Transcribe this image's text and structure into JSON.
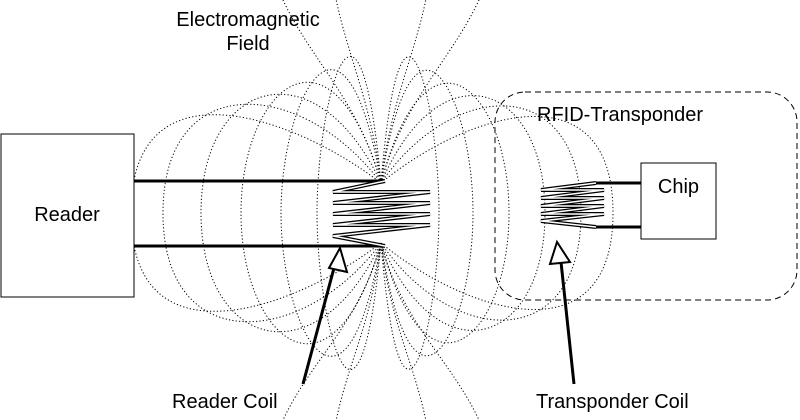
{
  "labels": {
    "reader": "Reader",
    "chip": "Chip",
    "field_line1": "Electromagnetic",
    "field_line2": "Field",
    "transponder": "RFID-Transponder",
    "reader_coil": "Reader Coil",
    "transponder_coil": "Transponder Coil"
  },
  "colors": {
    "stroke": "#000000",
    "background": "#ffffff"
  }
}
